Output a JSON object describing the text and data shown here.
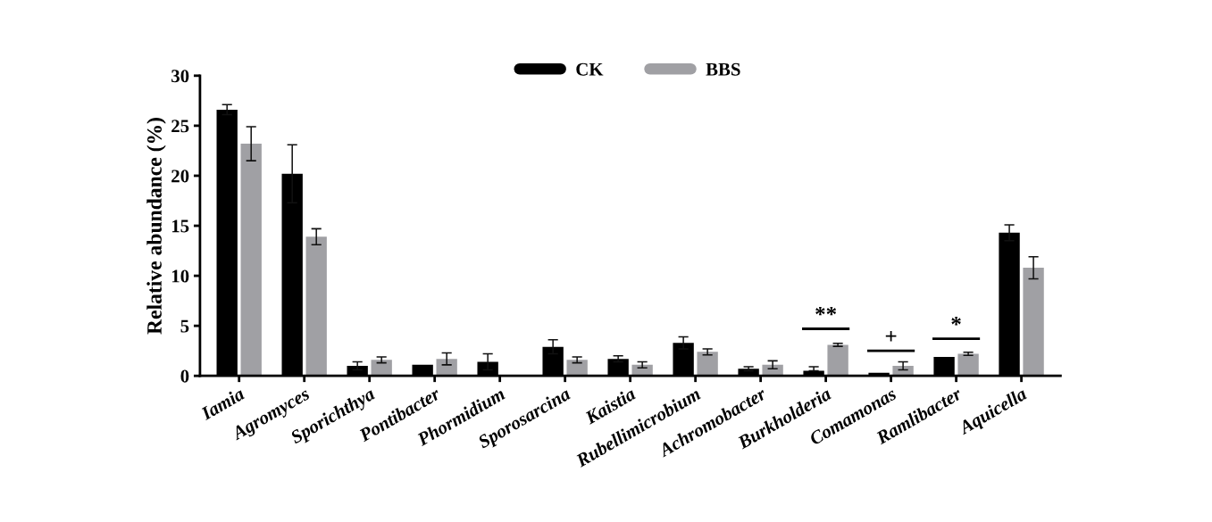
{
  "chart_data": {
    "type": "bar",
    "ylabel": "Relative abundance (%)",
    "categories": [
      "Iamia",
      "Agromyces",
      "Sporichthya",
      "Pontibacter",
      "Phormidium",
      "Sporosarcina",
      "Kaistia",
      "Rubellimicrobium",
      "Achromobacter",
      "Burkholderia",
      "Comamonas",
      "Ramlibacter",
      "Aquicella"
    ],
    "series": [
      {
        "name": "CK",
        "color": "#000000",
        "values": [
          26.6,
          20.2,
          1.0,
          1.1,
          1.4,
          2.9,
          1.7,
          3.3,
          0.7,
          0.5,
          0.3,
          1.9,
          14.3
        ],
        "errors": [
          0.5,
          2.9,
          0.4,
          null,
          0.8,
          0.7,
          0.3,
          0.6,
          0.2,
          [
            0.5,
            0.9
          ],
          null,
          null,
          0.8
        ]
      },
      {
        "name": "BBS",
        "color": "#a0a0a4",
        "values": [
          23.2,
          13.9,
          1.6,
          1.7,
          0.1,
          1.6,
          1.1,
          2.4,
          1.1,
          3.1,
          1.0,
          2.2,
          10.8
        ],
        "errors": [
          1.7,
          0.8,
          0.3,
          0.6,
          null,
          0.3,
          0.3,
          0.3,
          0.4,
          0.15,
          0.4,
          0.15,
          1.1
        ]
      }
    ],
    "ylim": [
      0,
      30
    ],
    "yticks": [
      0,
      5,
      10,
      15,
      20,
      25,
      30
    ],
    "grid": false,
    "legend": "top",
    "annotations": [
      "**",
      "+",
      "*"
    ]
  }
}
